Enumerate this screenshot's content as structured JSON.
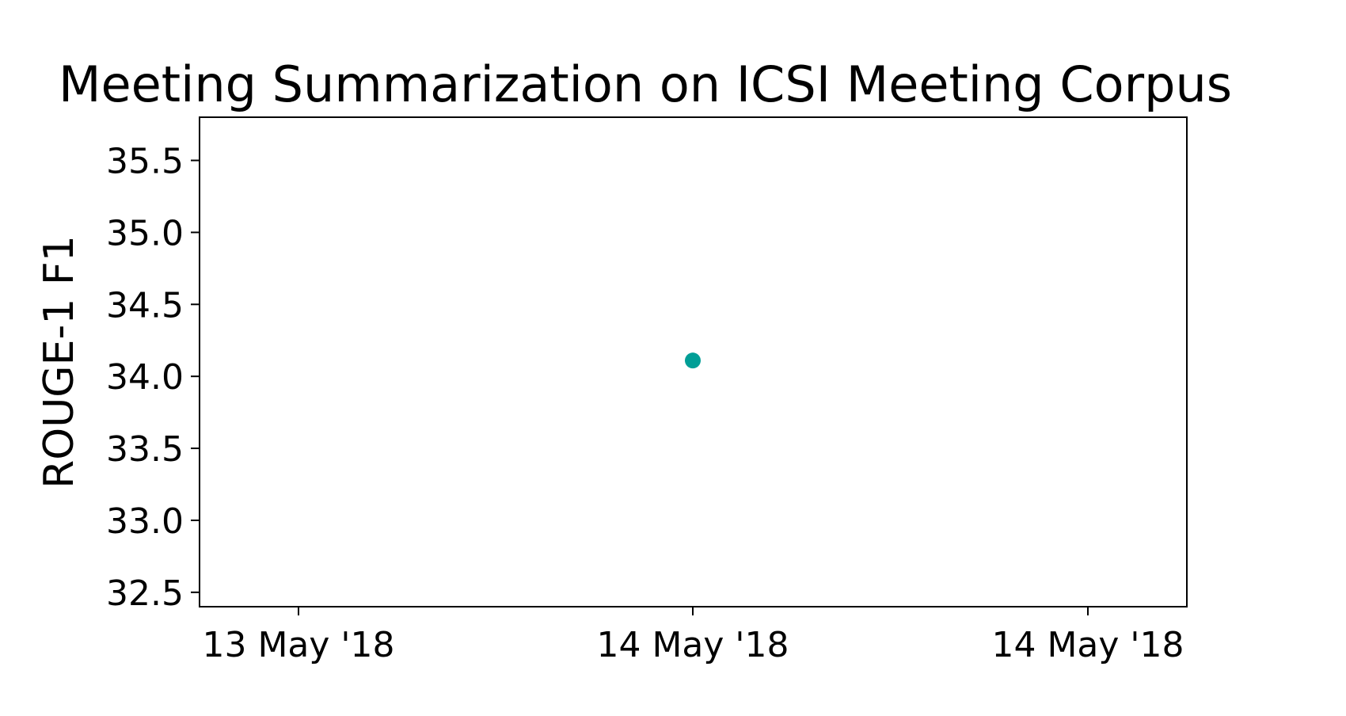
{
  "chart_data": {
    "type": "scatter",
    "title": "Meeting Summarization on ICSI Meeting Corpus",
    "xlabel": "",
    "ylabel": "ROUGE-1 F1",
    "x_tick_labels": [
      "13 May '18",
      "14 May '18",
      "14 May '18"
    ],
    "y_ticks": [
      32.5,
      33.0,
      33.5,
      34.0,
      34.5,
      35.0,
      35.5
    ],
    "y_tick_labels": [
      "32.5",
      "33.0",
      "33.5",
      "34.0",
      "34.5",
      "35.0",
      "35.5"
    ],
    "ylim": [
      32.4,
      35.8
    ],
    "grid": false,
    "points": [
      {
        "x": "14 May '18",
        "y": 34.11
      }
    ],
    "colors": {
      "point": "#009e96",
      "axis": "#000000"
    }
  }
}
